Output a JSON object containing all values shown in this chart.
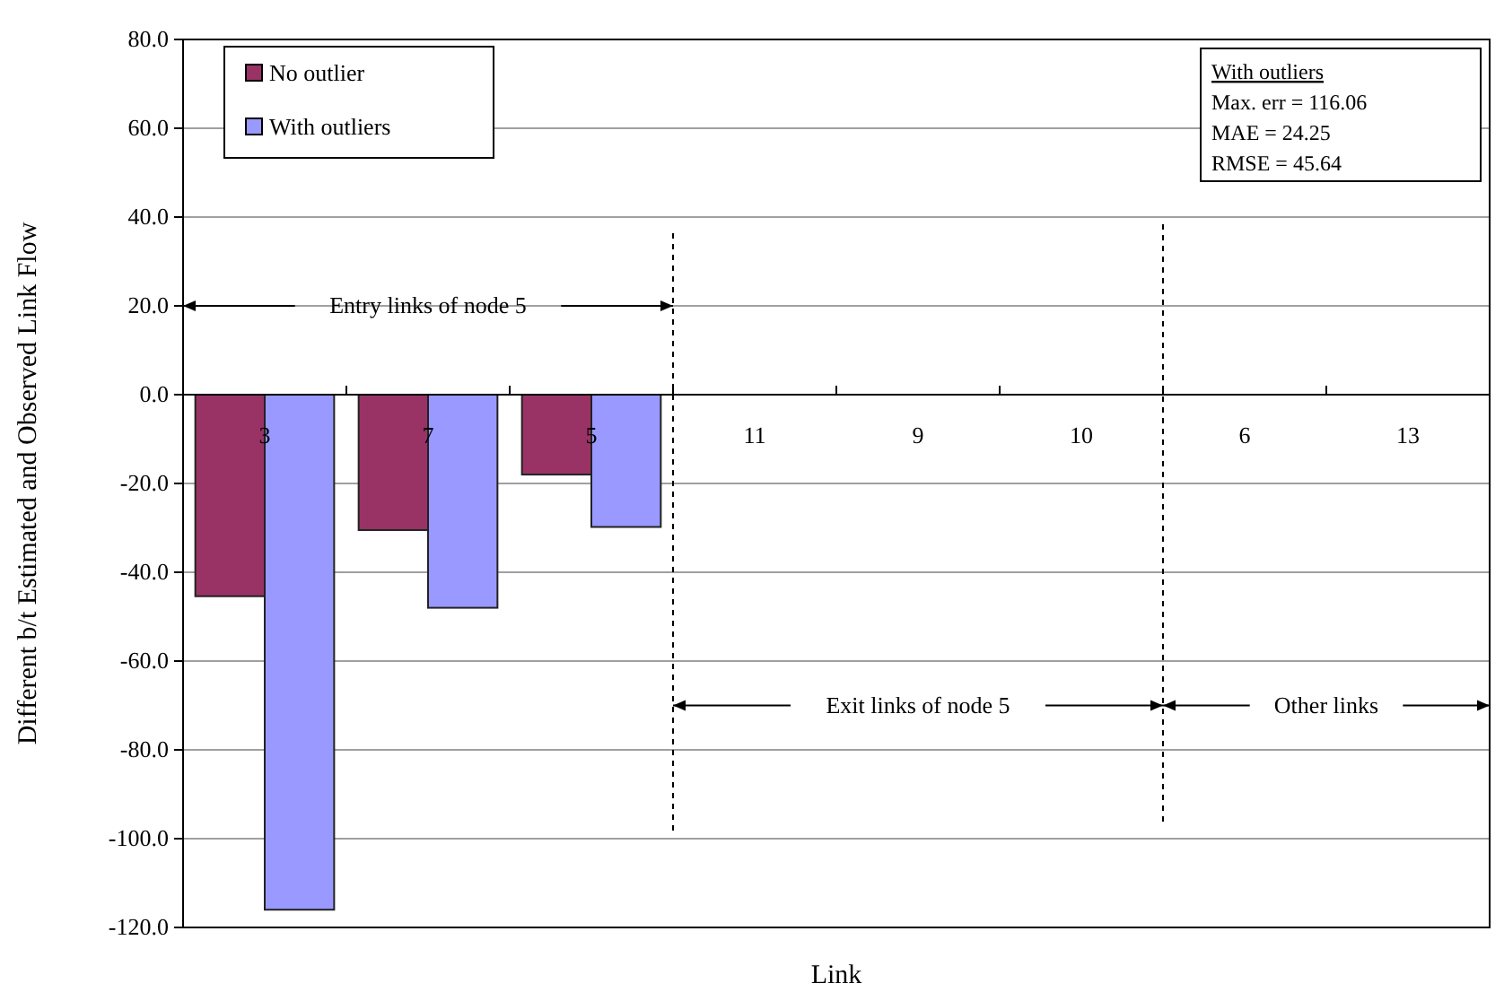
{
  "chart_data": {
    "type": "bar",
    "xlabel": "Link",
    "ylabel": "Different b/t Estimated and Observed Link Flow",
    "categories": [
      "3",
      "7",
      "5",
      "11",
      "9",
      "10",
      "6",
      "13"
    ],
    "series": [
      {
        "name": "No outlier",
        "color": "#993366",
        "values": [
          -45.4,
          -30.5,
          -18.0,
          null,
          null,
          null,
          null,
          null
        ]
      },
      {
        "name": "With outliers",
        "color": "#9999ff",
        "values": [
          -116,
          -48.0,
          -29.8,
          null,
          null,
          null,
          null,
          null
        ]
      }
    ],
    "ylim": [
      -120,
      80
    ],
    "yticks": [
      {
        "value": -120,
        "label": "-120.0"
      },
      {
        "value": -100,
        "label": "-100.0"
      },
      {
        "value": -80,
        "label": "-80.0"
      },
      {
        "value": -60,
        "label": "-60.0"
      },
      {
        "value": -40,
        "label": "-40.0"
      },
      {
        "value": -20,
        "label": "-20.0"
      },
      {
        "value": 0,
        "label": "0.0"
      },
      {
        "value": 20,
        "label": "20.0"
      },
      {
        "value": 40,
        "label": "40.0"
      },
      {
        "value": 60,
        "label": "60.0"
      },
      {
        "value": 80,
        "label": "80.0"
      }
    ],
    "grid": "y",
    "legend": "top left",
    "annotations": [
      "Entry links of node 5",
      "Exit links of node 5",
      "Other links",
      "With outliers",
      "Max. err = 116.06",
      "MAE = 24.25",
      "RMSE = 45.64"
    ]
  }
}
